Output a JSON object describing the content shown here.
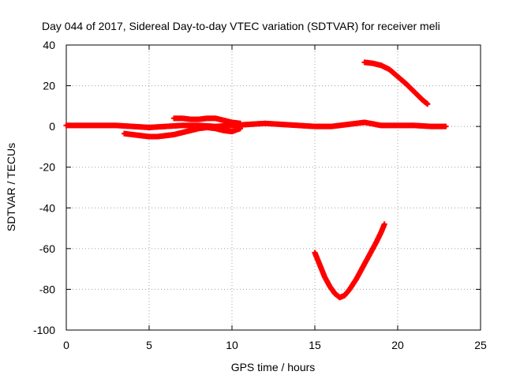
{
  "chart_data": {
    "type": "scatter",
    "title": "Day 044 of 2017, Sidereal Day-to-day VTEC variation (SDTVAR) for receiver meli",
    "xlabel": "GPS time / hours",
    "ylabel": "SDTVAR / TECUs",
    "xlim": [
      0,
      25
    ],
    "ylim": [
      -100,
      40
    ],
    "xticks": [
      0,
      5,
      10,
      15,
      20,
      25
    ],
    "yticks": [
      -100,
      -80,
      -60,
      -40,
      -20,
      0,
      20,
      40
    ],
    "grid": true,
    "legend": "none",
    "marker": "plus",
    "color": "#ff0000",
    "series": [
      {
        "x": [
          0.0,
          1.0,
          2.0,
          3.0,
          4.0,
          5.0,
          6.0,
          7.0,
          8.0,
          9.0,
          10.0,
          11.0,
          12.0,
          13.0,
          14.0,
          15.0,
          16.0,
          17.0,
          18.0,
          19.0,
          20.0,
          21.0,
          22.0,
          22.9
        ],
        "y": [
          0.5,
          0.5,
          0.5,
          0.5,
          0.0,
          -0.5,
          0.0,
          0.5,
          0.5,
          0.0,
          0.5,
          1.0,
          1.5,
          1.0,
          0.5,
          0.0,
          0.0,
          1.0,
          2.0,
          0.5,
          0.5,
          0.5,
          0.0,
          0.0
        ]
      },
      {
        "x": [
          3.5,
          4.0,
          4.5,
          5.0,
          5.5,
          6.0,
          6.5,
          7.0,
          7.5,
          8.0,
          8.5,
          9.0,
          9.5,
          10.0,
          10.5
        ],
        "y": [
          -3.5,
          -4.0,
          -4.5,
          -5.0,
          -5.0,
          -4.5,
          -4.0,
          -3.0,
          -2.0,
          -1.0,
          -0.5,
          -1.0,
          -2.0,
          -2.5,
          -1.0
        ]
      },
      {
        "x": [
          6.5,
          7.0,
          7.5,
          8.0,
          8.5,
          9.0,
          9.5,
          10.0,
          10.5
        ],
        "y": [
          4.0,
          4.0,
          3.5,
          3.5,
          4.0,
          4.0,
          3.0,
          2.0,
          1.5
        ]
      },
      {
        "x": [
          18.0,
          18.5,
          19.0,
          19.5,
          20.0,
          20.5,
          21.0,
          21.5,
          21.8
        ],
        "y": [
          31.5,
          31.0,
          30.0,
          28.0,
          24.5,
          21.0,
          17.0,
          13.0,
          11.0
        ]
      },
      {
        "x": [
          15.0,
          15.3,
          15.6,
          15.9,
          16.2,
          16.5,
          16.8,
          17.1,
          17.5,
          17.9,
          18.3,
          18.7,
          19.0,
          19.2
        ],
        "y": [
          -62.0,
          -68.0,
          -74.0,
          -78.5,
          -82.0,
          -84.0,
          -83.0,
          -80.0,
          -75.0,
          -69.0,
          -63.0,
          -57.0,
          -52.0,
          -48.0
        ]
      }
    ]
  }
}
